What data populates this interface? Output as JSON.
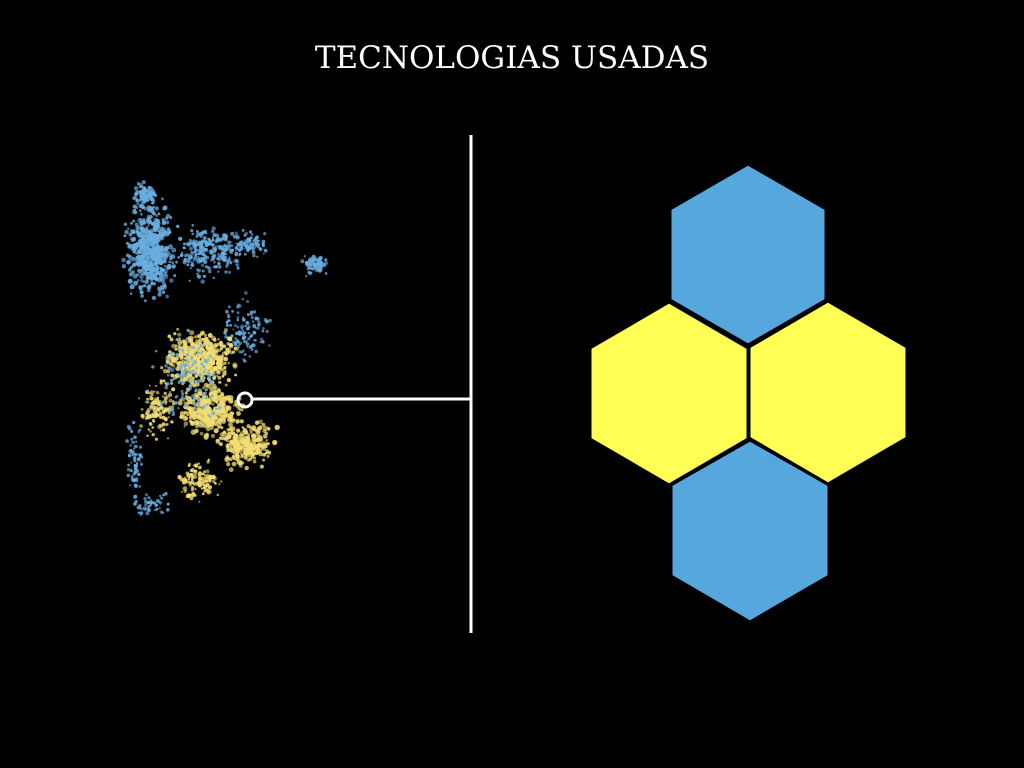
{
  "slide": {
    "title": "TECNOLOGIAS USADAS",
    "background_color": "#000000",
    "text_color": "#ffffff"
  },
  "graphics": {
    "connector_line_color": "#ffffff",
    "point_cloud_colors": {
      "blue": "#6aaee0",
      "yellow": "#f3dd73"
    },
    "hexagon_colors": {
      "top": "#55a7de",
      "middle_left": "#ffff55",
      "middle_right": "#ffff55",
      "bottom": "#55a7de"
    }
  }
}
